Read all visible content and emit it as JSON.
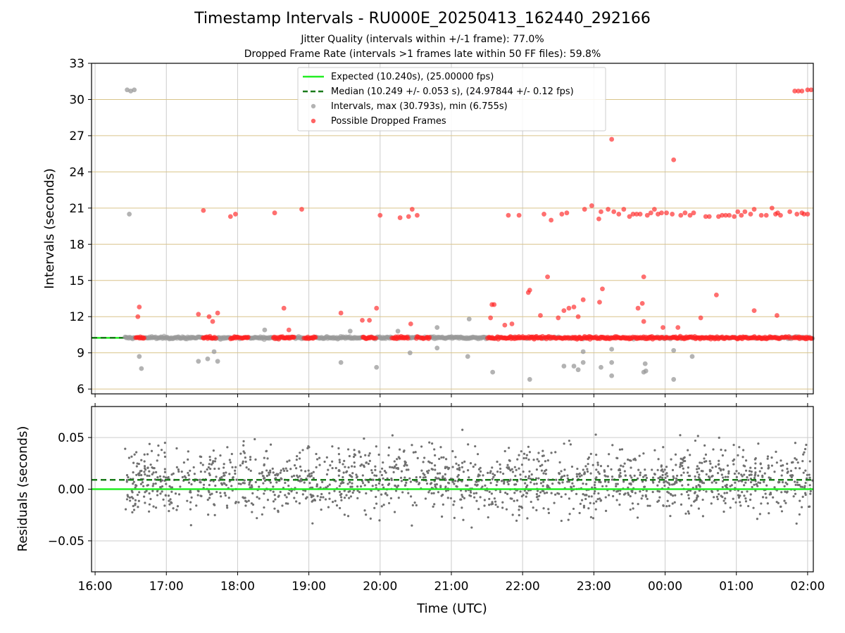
{
  "figure": {
    "title": "Timestamp Intervals - RU000E_20250413_162440_292166",
    "subtitle_1": "Jitter Quality (intervals within +/-1 frame): 77.0%",
    "subtitle_2": "Dropped Frame Rate (intervals >1 frames late within 50 FF files): 59.8%"
  },
  "colors": {
    "expected": "#22ee22",
    "median": "#1a7a1a",
    "interval_points": "#999999",
    "dropped_points": "#ff2222",
    "residual_points": "#707070",
    "top_grid": "#d9c48a",
    "grid": "#cccccc"
  },
  "chart_data": [
    {
      "type": "scatter",
      "name": "top",
      "ylabel": "Intervals (seconds)",
      "ylim": [
        5.6,
        33
      ],
      "yticks": [
        6,
        9,
        12,
        15,
        18,
        21,
        24,
        27,
        30,
        33
      ],
      "xlim_hours": [
        15.95,
        26.08
      ],
      "grid": true,
      "legend_placement": "upper center",
      "legend": [
        {
          "label": "Expected (10.240s), (25.00000 fps)",
          "style": "solid-line"
        },
        {
          "label": "Median (10.249 +/- 0.053 s), (24.97844 +/- 0.12 fps)",
          "style": "dashed-line"
        },
        {
          "label": "Intervals, max (30.793s), min (6.755s)",
          "style": "gray-dot"
        },
        {
          "label": "Possible Dropped Frames",
          "style": "red-dot"
        }
      ],
      "expected": 10.24,
      "median": 10.249,
      "dropped_points": [
        [
          16.62,
          12.8
        ],
        [
          16.6,
          12.0
        ],
        [
          17.45,
          12.2
        ],
        [
          17.52,
          20.8
        ],
        [
          17.6,
          12.0
        ],
        [
          17.65,
          11.6
        ],
        [
          17.72,
          12.3
        ],
        [
          17.9,
          20.3
        ],
        [
          17.97,
          20.5
        ],
        [
          18.52,
          20.6
        ],
        [
          18.65,
          12.7
        ],
        [
          18.72,
          10.9
        ],
        [
          18.9,
          20.9
        ],
        [
          19.45,
          12.3
        ],
        [
          19.75,
          11.7
        ],
        [
          19.85,
          11.7
        ],
        [
          19.95,
          12.7
        ],
        [
          20.0,
          20.4
        ],
        [
          20.28,
          20.2
        ],
        [
          20.4,
          20.3
        ],
        [
          20.45,
          20.9
        ],
        [
          20.52,
          20.4
        ],
        [
          20.43,
          11.4
        ],
        [
          21.55,
          11.9
        ],
        [
          21.57,
          13.0
        ],
        [
          21.6,
          13.0
        ],
        [
          21.75,
          11.3
        ],
        [
          21.8,
          20.4
        ],
        [
          21.85,
          11.4
        ],
        [
          21.95,
          20.4
        ],
        [
          22.08,
          14.0
        ],
        [
          22.1,
          14.2
        ],
        [
          22.25,
          12.1
        ],
        [
          22.3,
          20.5
        ],
        [
          22.35,
          15.3
        ],
        [
          22.4,
          20.0
        ],
        [
          22.5,
          11.9
        ],
        [
          22.55,
          20.5
        ],
        [
          22.58,
          12.5
        ],
        [
          22.62,
          20.6
        ],
        [
          22.65,
          12.7
        ],
        [
          22.72,
          12.8
        ],
        [
          22.78,
          12.0
        ],
        [
          22.85,
          13.4
        ],
        [
          22.87,
          20.9
        ],
        [
          22.97,
          21.2
        ],
        [
          23.07,
          20.1
        ],
        [
          23.08,
          13.2
        ],
        [
          23.1,
          20.7
        ],
        [
          23.12,
          14.3
        ],
        [
          23.2,
          20.9
        ],
        [
          23.25,
          26.7
        ],
        [
          23.28,
          20.7
        ],
        [
          23.35,
          20.5
        ],
        [
          23.42,
          20.9
        ],
        [
          23.5,
          20.3
        ],
        [
          23.55,
          20.5
        ],
        [
          23.6,
          20.5
        ],
        [
          23.62,
          12.7
        ],
        [
          23.65,
          20.5
        ],
        [
          23.68,
          13.1
        ],
        [
          23.7,
          11.6
        ],
        [
          23.7,
          15.3
        ],
        [
          23.75,
          20.4
        ],
        [
          23.8,
          20.6
        ],
        [
          23.85,
          20.9
        ],
        [
          23.9,
          20.5
        ],
        [
          23.95,
          20.6
        ],
        [
          23.97,
          11.1
        ],
        [
          24.02,
          20.6
        ],
        [
          24.1,
          20.5
        ],
        [
          24.12,
          25.0
        ],
        [
          24.18,
          11.1
        ],
        [
          24.22,
          20.4
        ],
        [
          24.28,
          20.6
        ],
        [
          24.35,
          20.4
        ],
        [
          24.4,
          20.6
        ],
        [
          24.5,
          11.9
        ],
        [
          24.57,
          20.3
        ],
        [
          24.62,
          20.3
        ],
        [
          24.72,
          13.8
        ],
        [
          24.75,
          20.3
        ],
        [
          24.8,
          20.4
        ],
        [
          24.85,
          20.4
        ],
        [
          24.9,
          20.4
        ],
        [
          24.97,
          20.3
        ],
        [
          25.02,
          20.7
        ],
        [
          25.07,
          20.4
        ],
        [
          25.12,
          20.7
        ],
        [
          25.2,
          20.5
        ],
        [
          25.25,
          20.9
        ],
        [
          25.25,
          12.5
        ],
        [
          25.35,
          20.4
        ],
        [
          25.42,
          20.4
        ],
        [
          25.5,
          21.0
        ],
        [
          25.55,
          20.5
        ],
        [
          25.58,
          20.6
        ],
        [
          25.57,
          12.1
        ],
        [
          25.62,
          20.4
        ],
        [
          25.75,
          20.7
        ],
        [
          25.85,
          20.5
        ],
        [
          25.92,
          20.6
        ],
        [
          25.95,
          20.5
        ],
        [
          26.0,
          20.5
        ],
        [
          25.82,
          30.7
        ],
        [
          25.87,
          30.7
        ],
        [
          25.92,
          30.7
        ],
        [
          26.0,
          30.8
        ],
        [
          26.05,
          30.8
        ]
      ],
      "interval_points": [
        [
          16.45,
          30.8
        ],
        [
          16.5,
          30.7
        ],
        [
          16.55,
          30.8
        ],
        [
          16.48,
          20.5
        ],
        [
          16.62,
          8.7
        ],
        [
          16.65,
          7.7
        ],
        [
          17.45,
          8.3
        ],
        [
          17.58,
          8.5
        ],
        [
          17.67,
          9.1
        ],
        [
          17.72,
          8.3
        ],
        [
          19.45,
          8.2
        ],
        [
          19.95,
          7.8
        ],
        [
          20.42,
          9.0
        ],
        [
          20.8,
          9.4
        ],
        [
          21.23,
          8.7
        ],
        [
          21.25,
          11.8
        ],
        [
          21.58,
          7.4
        ],
        [
          22.1,
          6.8
        ],
        [
          22.58,
          7.9
        ],
        [
          22.72,
          7.9
        ],
        [
          22.78,
          7.6
        ],
        [
          22.85,
          8.2
        ],
        [
          22.85,
          9.1
        ],
        [
          23.1,
          7.8
        ],
        [
          23.25,
          8.2
        ],
        [
          23.25,
          7.1
        ],
        [
          23.25,
          9.3
        ],
        [
          23.7,
          7.4
        ],
        [
          23.72,
          8.1
        ],
        [
          23.73,
          7.5
        ],
        [
          24.12,
          9.2
        ],
        [
          24.12,
          6.8
        ],
        [
          24.38,
          8.7
        ],
        [
          18.38,
          10.9
        ],
        [
          19.58,
          10.8
        ],
        [
          20.25,
          10.8
        ],
        [
          20.8,
          11.1
        ]
      ],
      "x_start_hours": 16.42,
      "x_end_hours": 26.08
    },
    {
      "type": "scatter",
      "name": "bottom",
      "xlabel": "Time (UTC)",
      "ylabel": "Residuals (seconds)",
      "ylim": [
        -0.08,
        0.08
      ],
      "yticks": [
        -0.05,
        0.0,
        0.05
      ],
      "ytick_labels": [
        "−0.05",
        "0.00",
        "0.05"
      ],
      "xticks": [
        "16:00",
        "17:00",
        "18:00",
        "19:00",
        "20:00",
        "21:00",
        "22:00",
        "23:00",
        "00:00",
        "01:00",
        "02:00"
      ],
      "expected_residual": 0.0,
      "median_residual": 0.009,
      "residual_std": 0.025
    }
  ]
}
